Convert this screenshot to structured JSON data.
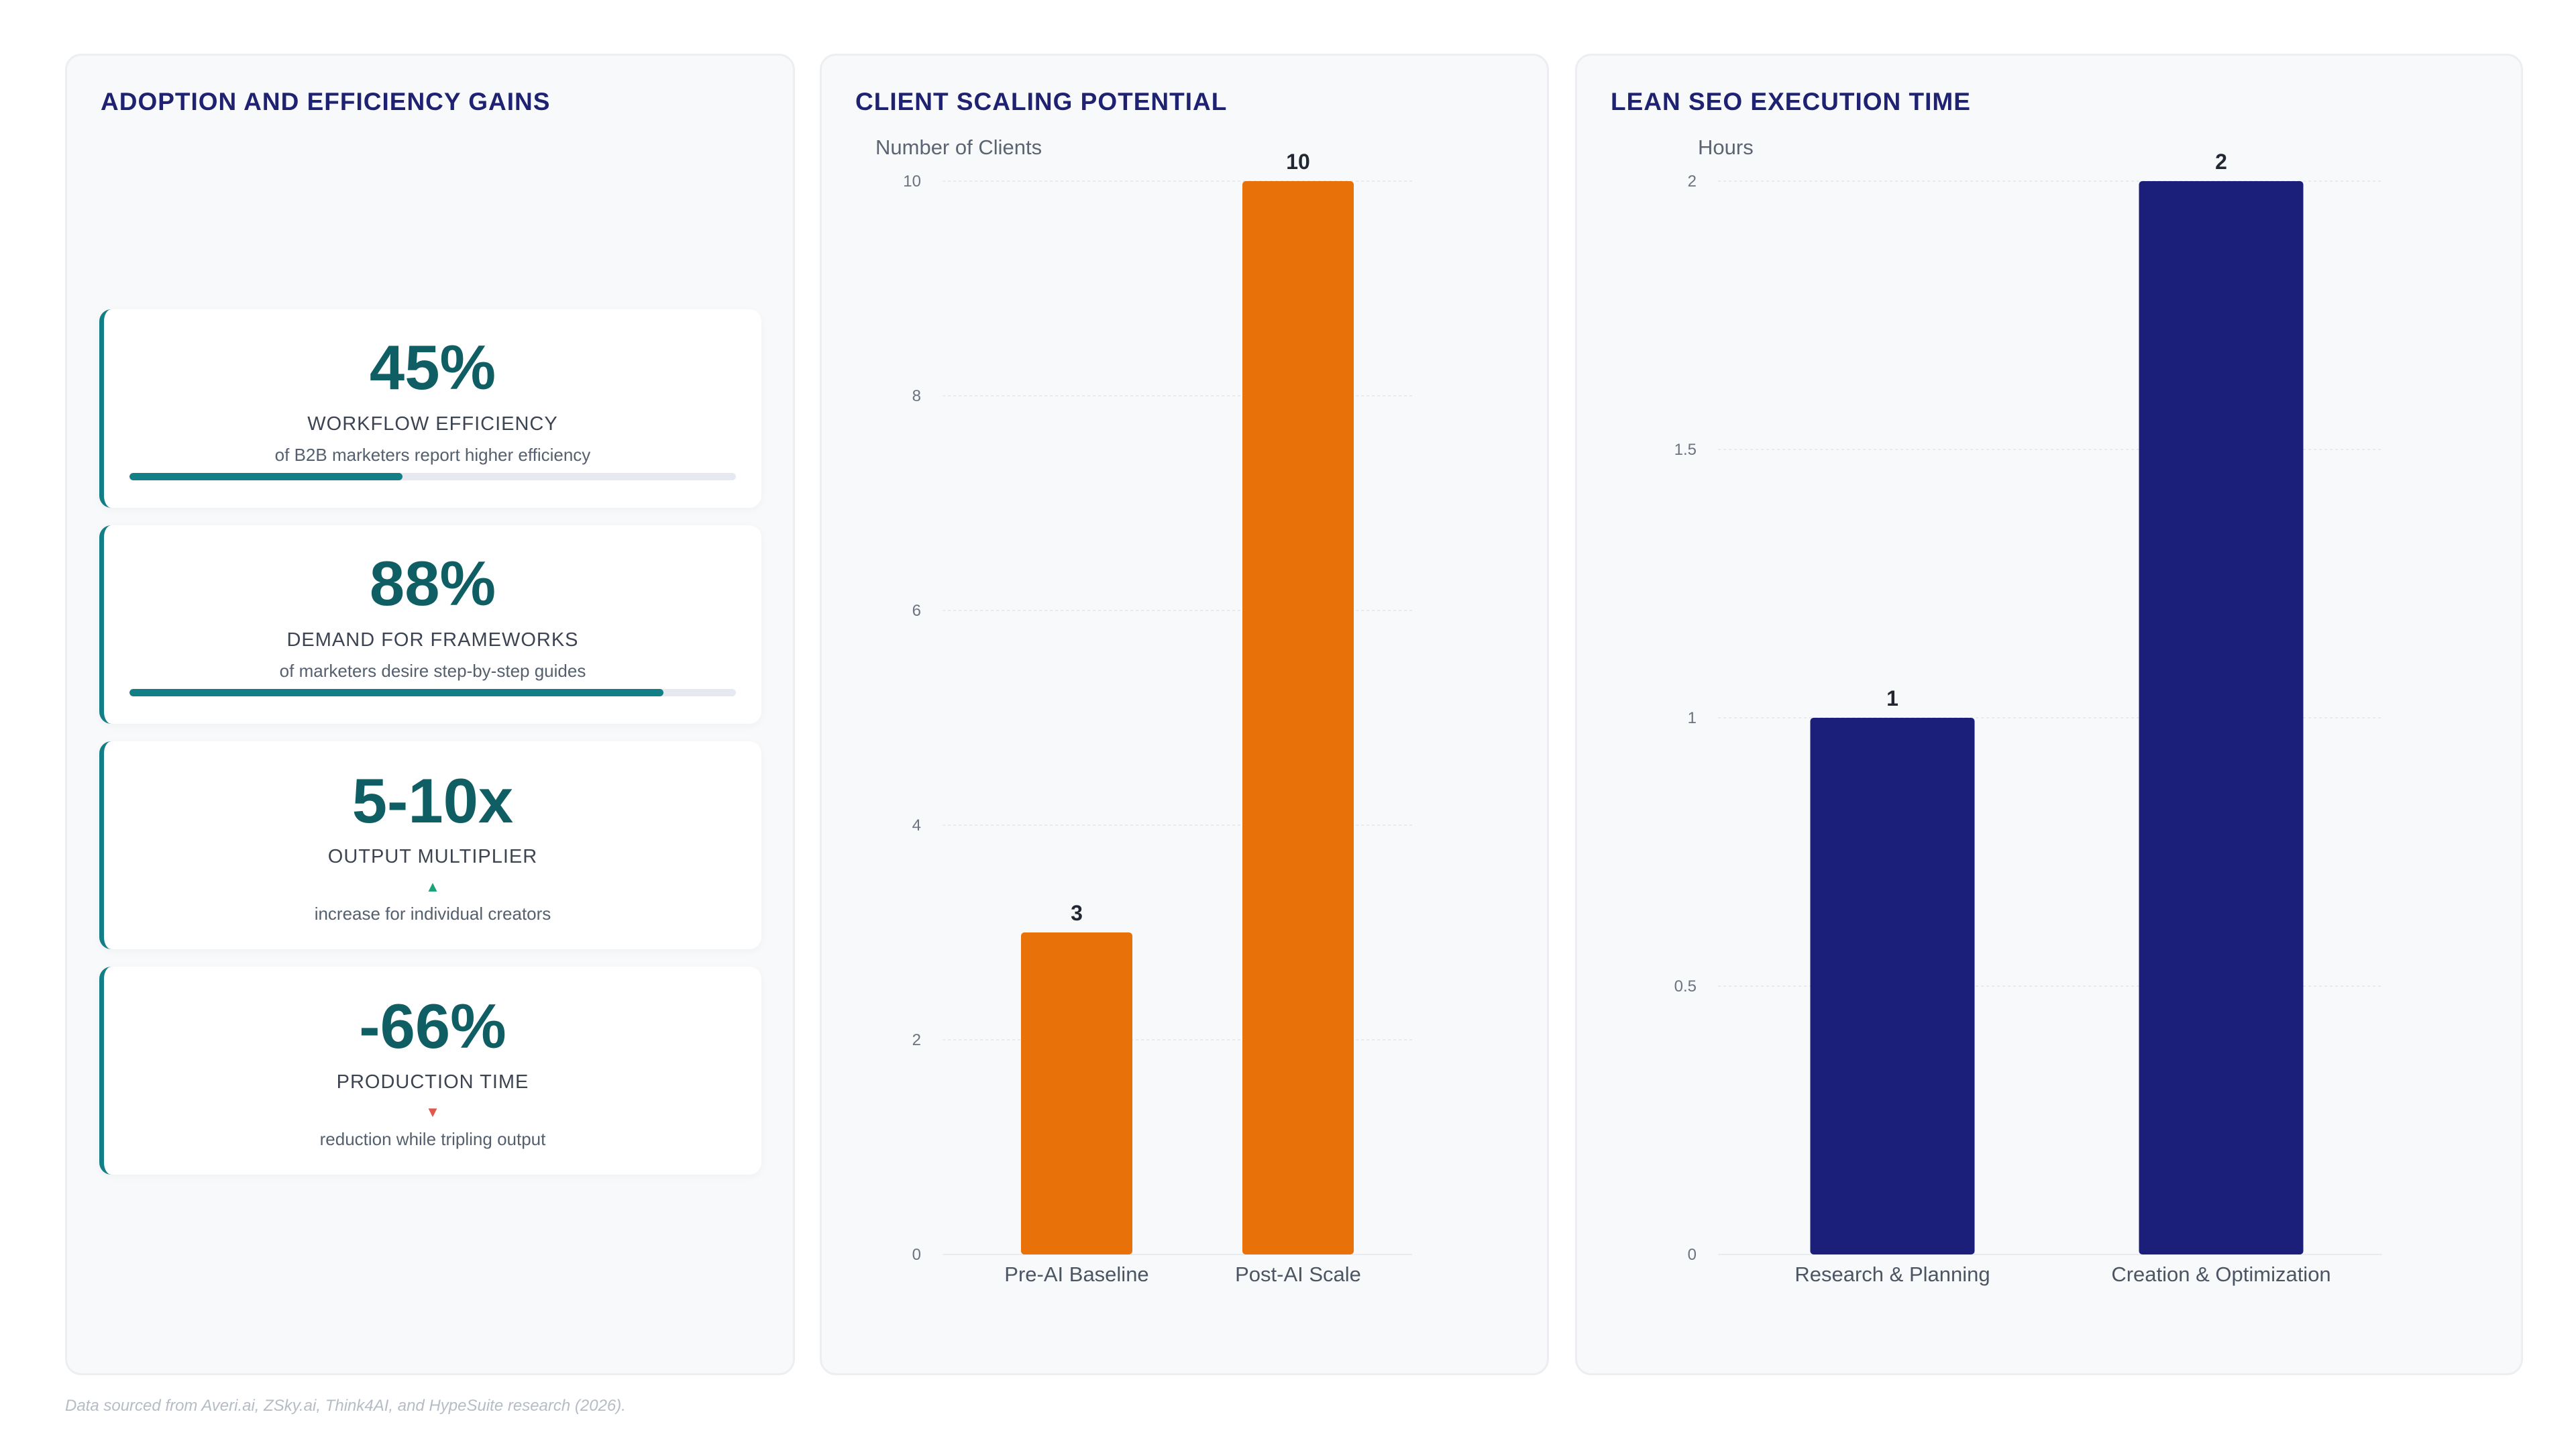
{
  "footer": "Data sourced from Averi.ai, ZSky.ai, Think4AI, and HypeSuite research (2026).",
  "kpi_panel": {
    "title": "ADOPTION AND EFFICIENCY GAINS",
    "cards": [
      {
        "value": "45%",
        "label": "WORKFLOW EFFICIENCY",
        "sub": "of B2B marketers report higher efficiency",
        "progress": 0.45
      },
      {
        "value": "88%",
        "label": "DEMAND FOR FRAMEWORKS",
        "sub": "of marketers desire step-by-step guides",
        "progress": 0.88
      },
      {
        "value": "5-10x",
        "label": "OUTPUT MULTIPLIER",
        "arrow": "▲",
        "arrow_color": "#1aa37a",
        "sub": "increase for individual creators"
      },
      {
        "value": "-66%",
        "label": "PRODUCTION TIME",
        "arrow": "▼",
        "arrow_color": "#e2574c",
        "sub": "reduction while tripling output"
      }
    ]
  },
  "colors": {
    "accent_teal": "#127f86",
    "kpi_value": "#0f5e63",
    "title": "#1e2270",
    "bar_orange": "#e8710a",
    "bar_navy": "#1b1f7a"
  },
  "chart_data": [
    {
      "type": "bar",
      "title": "CLIENT SCALING POTENTIAL",
      "ylabel": "Number of Clients",
      "categories": [
        "Pre-AI Baseline",
        "Post-AI Scale"
      ],
      "values": [
        3,
        10
      ],
      "data_labels": [
        "3",
        "10"
      ],
      "ylim": [
        0,
        10
      ],
      "yticks": [
        "0",
        "2",
        "4",
        "6",
        "8",
        "10"
      ],
      "ytick_values": [
        0,
        2,
        4,
        6,
        8,
        10
      ],
      "color": "#e8710a",
      "grid": true,
      "legend": "none"
    },
    {
      "type": "bar",
      "title": "LEAN SEO EXECUTION TIME",
      "ylabel": "Hours",
      "categories": [
        "Research & Planning",
        "Creation & Optimization"
      ],
      "values": [
        1,
        2
      ],
      "data_labels": [
        "1",
        "2"
      ],
      "ylim": [
        0,
        2
      ],
      "yticks": [
        "0",
        "0.5",
        "1",
        "1.5",
        "2"
      ],
      "ytick_values": [
        0,
        0.5,
        1,
        1.5,
        2
      ],
      "color": "#1b1f7a",
      "grid": true,
      "legend": "none"
    }
  ]
}
